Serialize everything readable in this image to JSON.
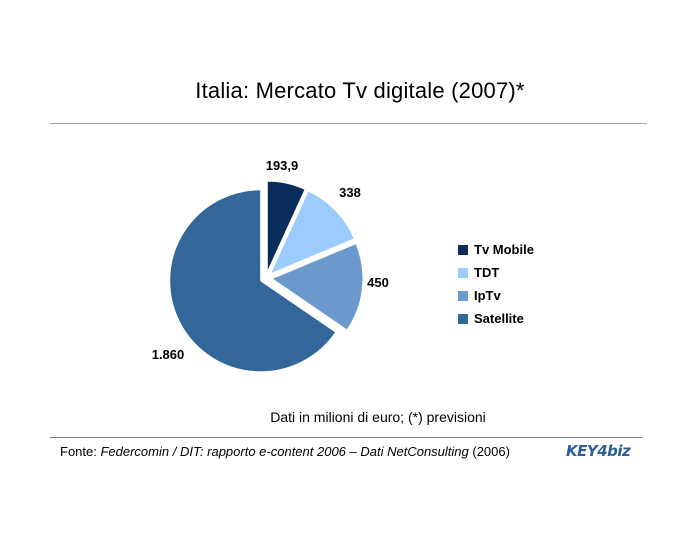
{
  "chart_data": {
    "type": "pie",
    "title": "Italia: Mercato Tv digitale (2007)*",
    "categories": [
      "Tv Mobile",
      "TDT",
      "IpTv",
      "Satellite"
    ],
    "values": [
      193.9,
      338,
      450,
      1860
    ],
    "data_labels": [
      "193,9",
      "338",
      "450",
      "1.860"
    ],
    "colors": [
      "#0b2d5b",
      "#9ccbff",
      "#6b99cc",
      "#336699"
    ],
    "exploded": true,
    "legend_position": "right"
  },
  "note": "Dati in milioni di euro; (*) previsioni",
  "source": {
    "prefix": "Fonte: ",
    "italic": "Federcomin / DIT: rapporto e-content 2006 – Dati NetConsulting",
    "suffix": " (2006)"
  },
  "logo_text": "KEY4biz"
}
